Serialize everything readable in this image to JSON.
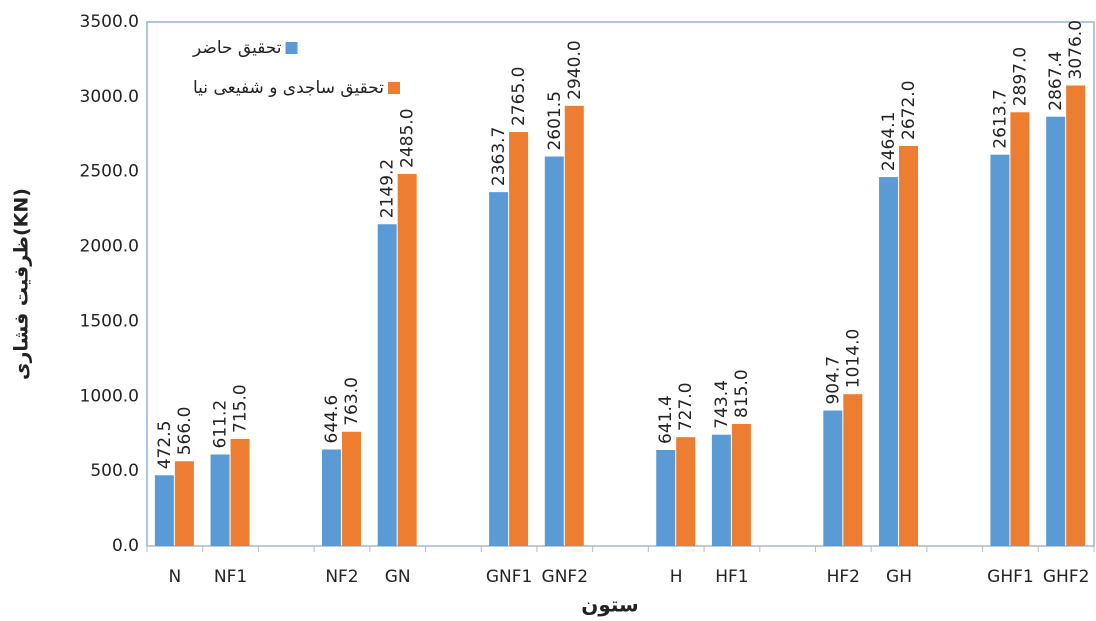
{
  "chart_data": {
    "type": "bar",
    "y_label": "ظرفیت فشاری(KN)",
    "x_label": "ستون",
    "categories": [
      "N",
      "NF1",
      null,
      "NF2",
      "GN",
      null,
      "GNF1",
      "GNF2",
      null,
      "H",
      "HF1",
      null,
      "HF2",
      "GH",
      null,
      "GHF1",
      "GHF2"
    ],
    "series": [
      {
        "name": "تحقیق حاضر",
        "color": "#5b9bd5",
        "values": [
          472.5,
          611.2,
          null,
          644.6,
          2149.2,
          null,
          2363.7,
          2601.5,
          null,
          641.4,
          743.4,
          null,
          904.7,
          2464.1,
          null,
          2613.7,
          2867.4
        ],
        "value_labels": [
          "472.5",
          "611.2",
          null,
          "644.6",
          "2149.2",
          null,
          "2363.7",
          "2601.5",
          null,
          "641.4",
          "743.4",
          null,
          "904.7",
          "2464.1",
          null,
          "2613.7",
          "2867.4"
        ]
      },
      {
        "name": "تحقیق ساجدی و شفیعی نیا",
        "color": "#ed7d31",
        "values": [
          566.0,
          715.0,
          null,
          763.0,
          2485.0,
          null,
          2765.0,
          2940.0,
          null,
          727.0,
          815.0,
          null,
          1014.0,
          2672.0,
          null,
          2897.0,
          3076.0
        ],
        "value_labels": [
          "566.0",
          "715.0",
          null,
          "763.0",
          "2485.0",
          null,
          "2765.0",
          "2940.0",
          null,
          "727.0",
          "815.0",
          null,
          "1014.0",
          "2672.0",
          null,
          "2897.0",
          "3076.0"
        ]
      }
    ],
    "ylim": [
      0,
      3500
    ],
    "yticks": [
      {
        "value": 0,
        "label": "0.0"
      },
      {
        "value": 500,
        "label": "500.0"
      },
      {
        "value": 1000,
        "label": "1000.0"
      },
      {
        "value": 1500,
        "label": "1500.0"
      },
      {
        "value": 2000,
        "label": "2000.0"
      },
      {
        "value": 2500,
        "label": "2500.0"
      },
      {
        "value": 3000,
        "label": "3000.0"
      },
      {
        "value": 3500,
        "label": "3500.0"
      }
    ],
    "grid": false,
    "legend": "upper left"
  }
}
